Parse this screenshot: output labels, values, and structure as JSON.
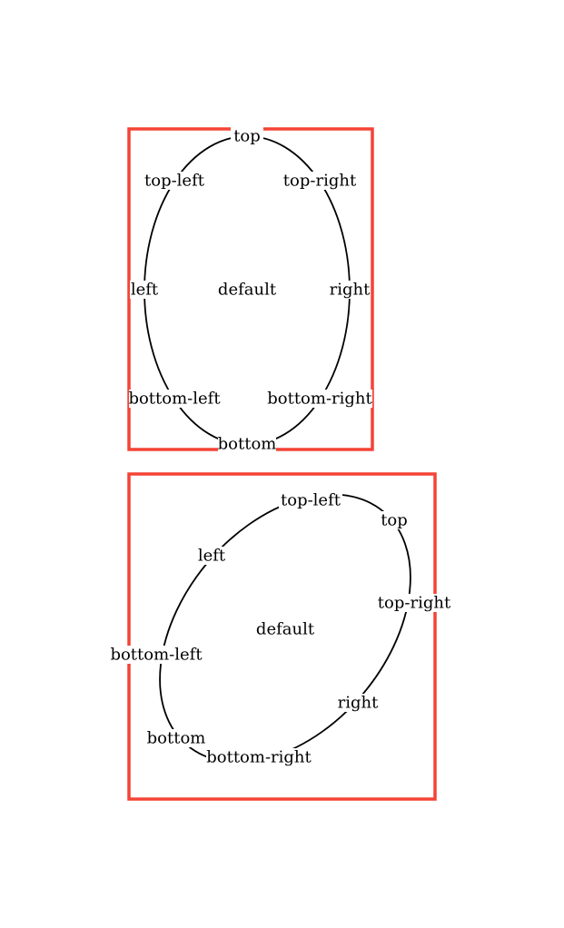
{
  "colors": {
    "frame": "#f44336",
    "ellipse": "#000000",
    "text": "#000000",
    "background": "#ffffff"
  },
  "figures": [
    {
      "labels": {
        "top": "top",
        "top_left": "top-left",
        "top_right": "top-right",
        "left": "left",
        "center": "default",
        "right": "right",
        "bottom_left": "bottom-left",
        "bottom_right": "bottom-right",
        "bottom": "bottom"
      }
    },
    {
      "labels": {
        "top_left": "top-left",
        "top": "top",
        "left": "left",
        "top_right": "top-right",
        "center": "default",
        "bottom_left": "bottom-left",
        "right": "right",
        "bottom": "bottom",
        "bottom_right": "bottom-right"
      }
    }
  ]
}
